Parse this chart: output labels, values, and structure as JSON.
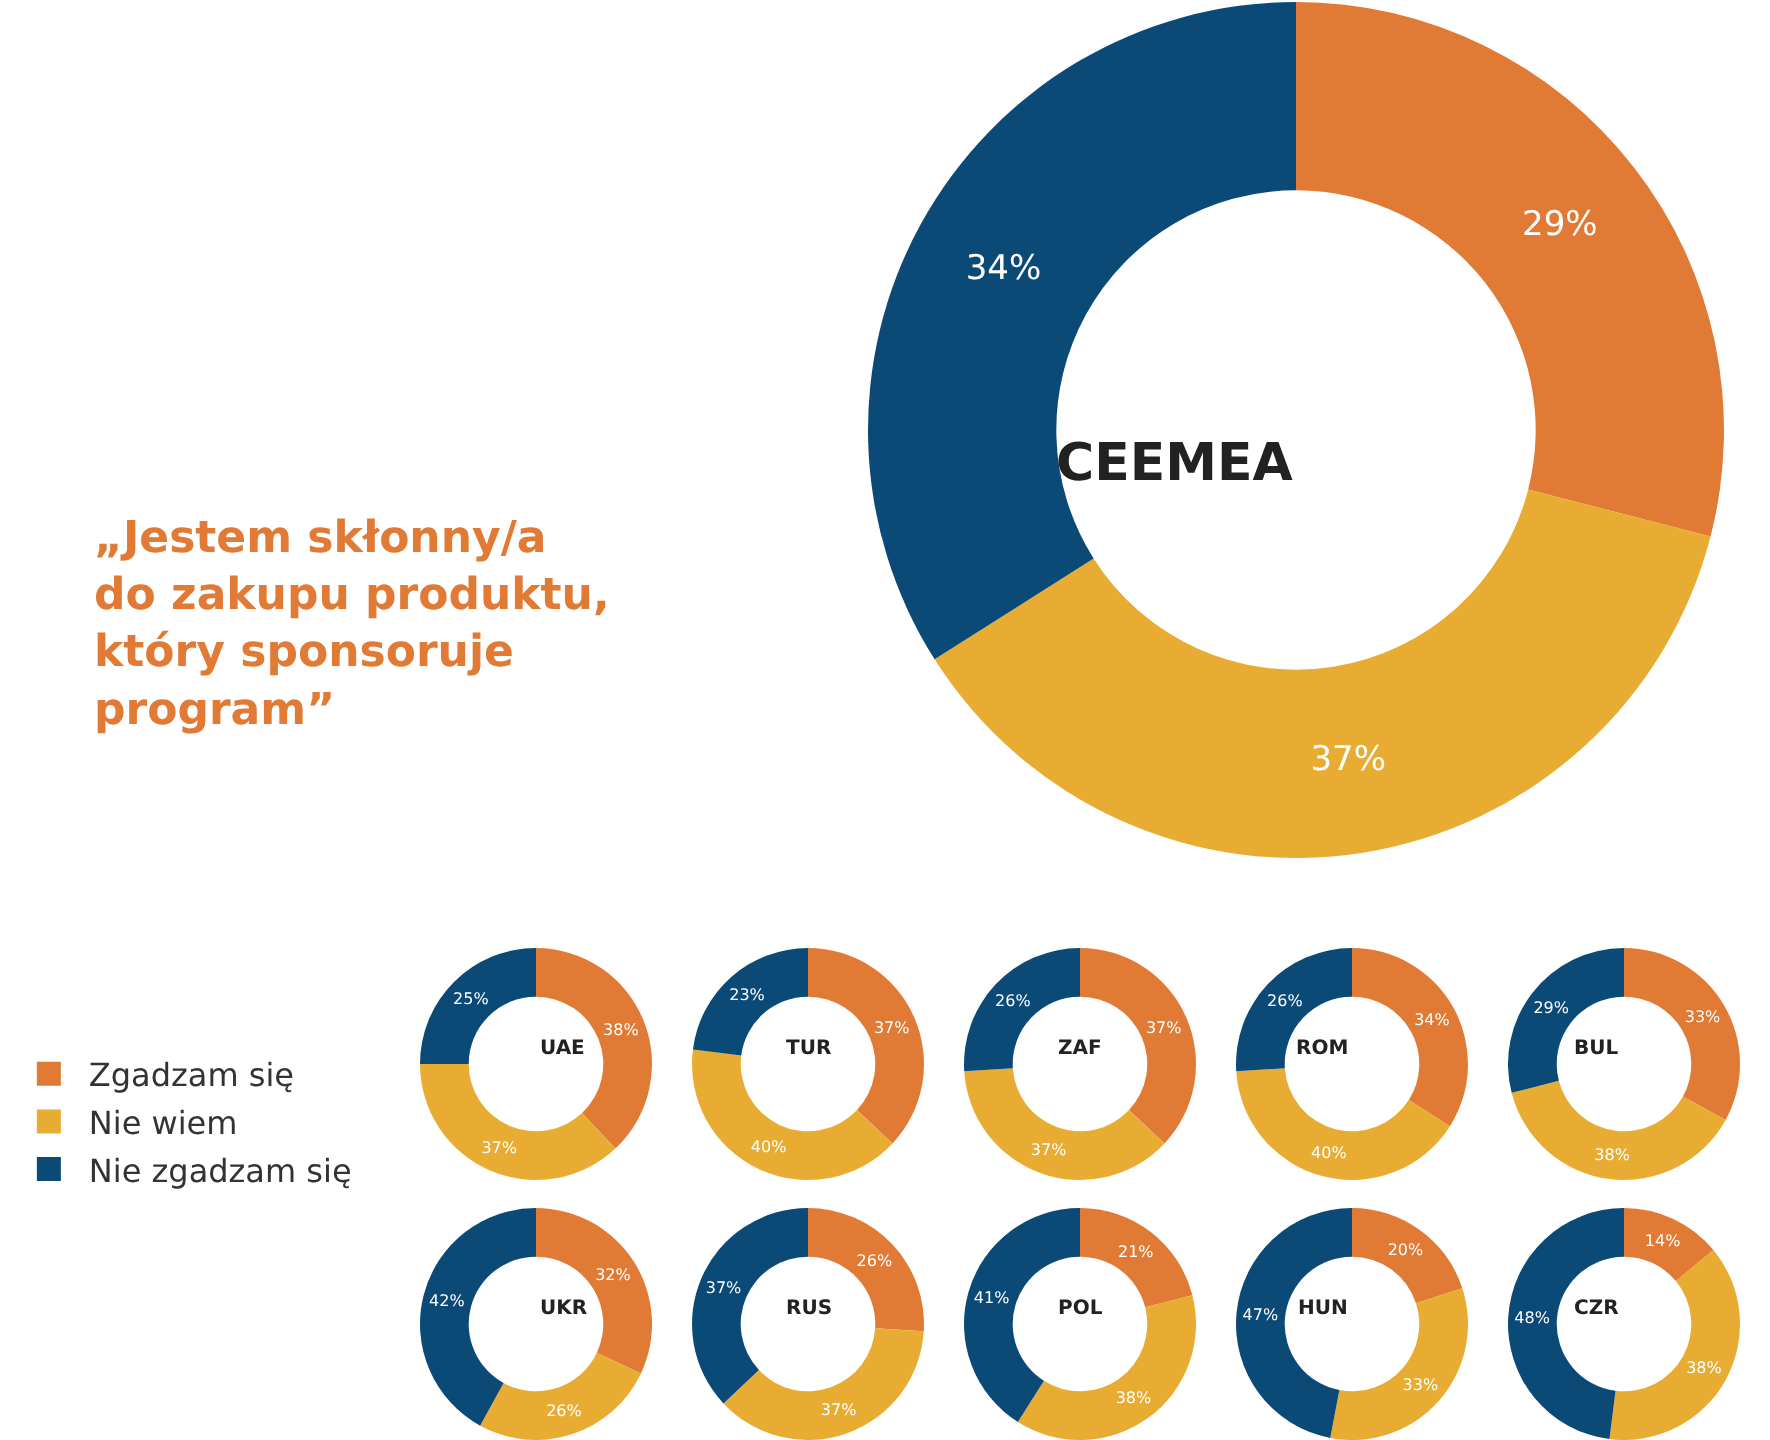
{
  "chart_data": {
    "type": "donut",
    "categories": [
      "Zgadzam się",
      "Nie wiem",
      "Nie zgadzam się"
    ],
    "colors": [
      "#e07a35",
      "#e8ac33",
      "#0b4a76"
    ],
    "legend": "left",
    "annotations": [
      "„Jestem skłonny/a\ndo zakupu produktu,\nktóry sponsoruje\nprogram”"
    ],
    "series": [
      {
        "name": "CEEMEA",
        "values": [
          29,
          37,
          34
        ],
        "value_labels": [
          "29%",
          "37%",
          "34%"
        ]
      },
      {
        "name": "UAE",
        "values": [
          38,
          37,
          25
        ],
        "value_labels": [
          "38%",
          "37%",
          "25%"
        ]
      },
      {
        "name": "TUR",
        "values": [
          37,
          40,
          23
        ],
        "value_labels": [
          "37%",
          "40%",
          "23%"
        ]
      },
      {
        "name": "ZAF",
        "values": [
          37,
          37,
          26
        ],
        "value_labels": [
          "37%",
          "37%",
          "26%"
        ]
      },
      {
        "name": "ROM",
        "values": [
          34,
          40,
          26
        ],
        "value_labels": [
          "34%",
          "40%",
          "26%"
        ]
      },
      {
        "name": "BUL",
        "values": [
          33,
          38,
          29
        ],
        "value_labels": [
          "33%",
          "38%",
          "29%"
        ]
      },
      {
        "name": "UKR",
        "values": [
          32,
          26,
          42
        ],
        "value_labels": [
          "32%",
          "26%",
          "42%"
        ]
      },
      {
        "name": "RUS",
        "values": [
          26,
          37,
          37
        ],
        "value_labels": [
          "26%",
          "37%",
          "37%"
        ]
      },
      {
        "name": "POL",
        "values": [
          21,
          38,
          41
        ],
        "value_labels": [
          "21%",
          "38%",
          "41%"
        ]
      },
      {
        "name": "HUN",
        "values": [
          20,
          33,
          47
        ],
        "value_labels": [
          "20%",
          "33%",
          "47%"
        ]
      },
      {
        "name": "CZR",
        "values": [
          14,
          38,
          48
        ],
        "value_labels": [
          "14%",
          "38%",
          "48%"
        ]
      }
    ]
  }
}
